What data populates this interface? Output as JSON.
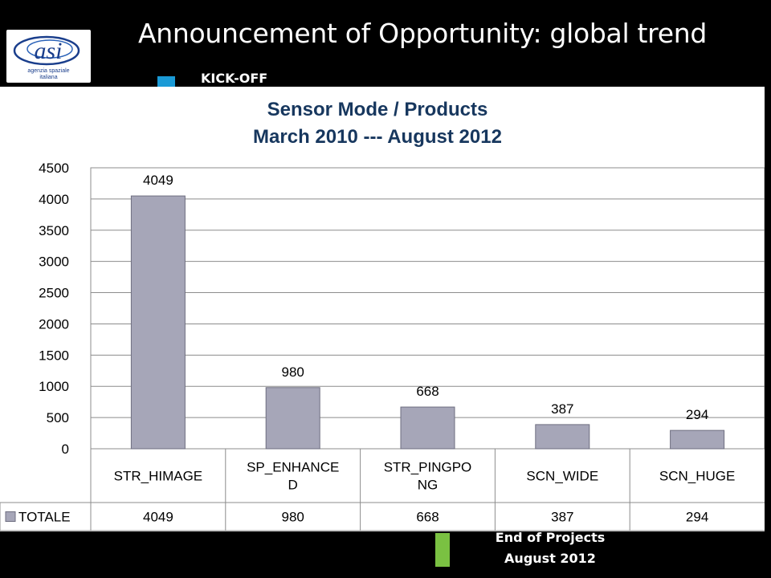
{
  "header": {
    "title": "Announcement of Opportunity: global trend",
    "logo": {
      "line1": "agenzia spaziale",
      "line2": "italiana"
    },
    "bullet_color": "#1a9ad6",
    "kickoff_label": "KICK-OFF"
  },
  "footer": {
    "line1": "End of Projects",
    "line2": "August 2012",
    "marker_color": "#7ac142"
  },
  "chart_data": {
    "type": "bar",
    "title": "Sensor Mode / Products",
    "subtitle": "March 2010 --- August 2012",
    "categories": [
      "STR_HIMAGE",
      "SP_ENHANCED",
      "STR_PINGPONG",
      "SCN_WIDE",
      "SCN_HUGE"
    ],
    "category_lines": [
      [
        "STR_HIMAGE"
      ],
      [
        "SP_ENHANCE",
        "D"
      ],
      [
        "STR_PINGPO",
        "NG"
      ],
      [
        "SCN_WIDE"
      ],
      [
        "SCN_HUGE"
      ]
    ],
    "series": [
      {
        "name": "TOTALE",
        "values": [
          4049,
          980,
          668,
          387,
          294
        ],
        "color": "#a6a6b8"
      }
    ],
    "ylim": [
      0,
      4500
    ],
    "ytick_step": 500,
    "grid": true,
    "data_table": true,
    "title_color": "#17375e"
  }
}
